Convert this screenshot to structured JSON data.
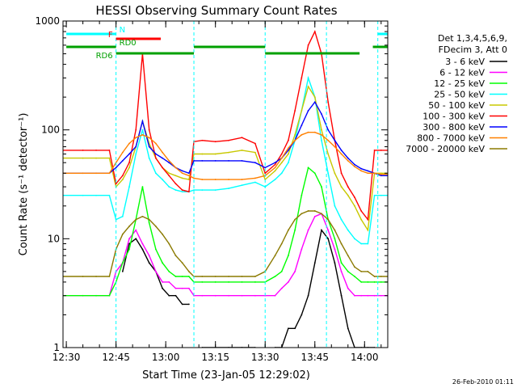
{
  "chart_data": {
    "type": "line",
    "title": "HESSI Observing Summary Count Rates",
    "xlabel": "Start Time (23-Jan-05 12:29:02)",
    "ylabel": "Count Rate (s⁻¹ detector⁻¹)",
    "y_scale": "log",
    "ylim": [
      1,
      1000
    ],
    "xlim": [
      0,
      98
    ],
    "x_unit": "minutes after 12:29:02",
    "x_tick_labels": [
      "12:30",
      "12:45",
      "13:00",
      "13:15",
      "13:30",
      "13:45",
      "14:00"
    ],
    "x_tick_values": [
      1,
      16,
      31,
      46,
      61,
      76,
      91
    ],
    "y_tick_labels": [
      "1",
      "10",
      "100",
      "1000"
    ],
    "y_tick_values": [
      1,
      10,
      100,
      1000
    ],
    "grid": false,
    "legend_position": "right",
    "legend_header": [
      "Det 1,3,4,5,6,9,",
      "FDecim 3, Att 0"
    ],
    "timestamp": "26-Feb-2010 01:11",
    "vertical_markers": [
      {
        "color": "#00ffff",
        "x": [
          16,
          39.5,
          61,
          79.5,
          95
        ]
      }
    ],
    "flags": [
      {
        "label": "N",
        "color": "#00ffff",
        "segments": [
          [
            1,
            16
          ],
          [
            95,
            98
          ]
        ]
      },
      {
        "label": "F",
        "color": "#ff0000",
        "segments": [
          [
            16,
            29.5
          ]
        ]
      },
      {
        "label": "RD0",
        "color": "#00a000",
        "segments": [
          [
            1,
            16
          ],
          [
            39.5,
            61
          ],
          [
            93.5,
            98
          ]
        ]
      },
      {
        "label": "RD6",
        "color": "#00a000",
        "segments": [
          [
            16,
            39.5
          ],
          [
            61,
            89.5
          ]
        ]
      }
    ],
    "series": [
      {
        "name": "3 - 6 keV",
        "color": "#000000",
        "x": [
          0,
          10,
          14,
          16,
          18,
          20,
          22,
          24,
          26,
          28,
          30,
          32,
          34,
          36,
          38,
          39.5,
          42,
          46,
          50,
          54,
          58,
          61,
          64,
          66,
          68,
          70,
          72,
          74,
          76,
          78,
          80,
          82,
          84,
          86,
          88,
          90,
          92,
          94,
          96,
          98
        ],
        "values": [
          null,
          null,
          null,
          null,
          5,
          9,
          10,
          8,
          6,
          5,
          3.5,
          3,
          3,
          2.5,
          2.5,
          null,
          1,
          1,
          1,
          1,
          1,
          null,
          1,
          1,
          1.5,
          1.5,
          2,
          3,
          6,
          12,
          10,
          6,
          3,
          1.5,
          1,
          1,
          1,
          1,
          null,
          null
        ]
      },
      {
        "name": "6 - 12 keV",
        "color": "#ff00ff",
        "x": [
          0,
          6,
          10,
          14,
          16,
          18,
          20,
          22,
          24,
          26,
          28,
          30,
          32,
          34,
          36,
          38,
          39.5,
          42,
          46,
          50,
          54,
          58,
          61,
          64,
          66,
          68,
          70,
          72,
          74,
          76,
          78,
          80,
          82,
          84,
          86,
          88,
          90,
          92,
          94,
          96,
          98
        ],
        "values": [
          3,
          3,
          3,
          3,
          5,
          6,
          10,
          12,
          9,
          7,
          5,
          4,
          4,
          3.5,
          3.5,
          3.5,
          3,
          3,
          3,
          3,
          3,
          3,
          3,
          3,
          3.5,
          4,
          5,
          8,
          12,
          16,
          17,
          12,
          8,
          5,
          3.5,
          3,
          3,
          3,
          3,
          3,
          3
        ]
      },
      {
        "name": "12 - 25 keV",
        "color": "#00ff00",
        "x": [
          0,
          6,
          10,
          14,
          16,
          18,
          20,
          22,
          24,
          26,
          28,
          30,
          32,
          34,
          36,
          38,
          39.5,
          42,
          46,
          50,
          54,
          58,
          61,
          64,
          66,
          68,
          70,
          72,
          74,
          76,
          78,
          80,
          82,
          84,
          86,
          88,
          90,
          92,
          94,
          96,
          98
        ],
        "values": [
          3,
          3,
          3,
          3,
          4,
          6,
          8,
          15,
          30,
          14,
          8,
          6,
          5,
          4.5,
          4.5,
          4.5,
          4,
          4,
          4,
          4,
          4,
          4,
          4,
          4.5,
          5,
          7,
          12,
          25,
          45,
          40,
          30,
          15,
          10,
          6,
          5,
          4.5,
          4,
          4,
          4,
          4,
          4
        ]
      },
      {
        "name": "25 - 50 keV",
        "color": "#00ffff",
        "x": [
          0,
          6,
          10,
          14,
          16,
          18,
          20,
          22,
          24,
          26,
          28,
          30,
          32,
          34,
          36,
          38,
          39.5,
          42,
          46,
          50,
          54,
          58,
          61,
          64,
          66,
          68,
          70,
          72,
          74,
          76,
          78,
          80,
          82,
          84,
          86,
          88,
          90,
          92,
          94,
          96,
          98
        ],
        "values": [
          25,
          25,
          25,
          25,
          15,
          16,
          30,
          60,
          100,
          55,
          40,
          35,
          30,
          28,
          27,
          27,
          28,
          28,
          28,
          29,
          31,
          33,
          30,
          35,
          40,
          50,
          80,
          150,
          300,
          200,
          80,
          40,
          20,
          15,
          12,
          10,
          9,
          9,
          25,
          25,
          25
        ]
      },
      {
        "name": "50 - 100 keV",
        "color": "#c8c800",
        "x": [
          0,
          6,
          10,
          14,
          16,
          18,
          20,
          22,
          24,
          26,
          28,
          30,
          32,
          34,
          36,
          38,
          39.5,
          42,
          46,
          50,
          54,
          58,
          61,
          64,
          66,
          68,
          70,
          72,
          74,
          76,
          78,
          80,
          82,
          84,
          86,
          88,
          90,
          92,
          94,
          96,
          98
        ],
        "values": [
          55,
          55,
          55,
          55,
          30,
          35,
          45,
          70,
          120,
          75,
          55,
          45,
          40,
          38,
          36,
          35,
          60,
          60,
          60,
          62,
          65,
          62,
          35,
          42,
          50,
          60,
          90,
          150,
          250,
          200,
          100,
          60,
          40,
          30,
          25,
          20,
          15,
          12,
          40,
          40,
          40
        ]
      },
      {
        "name": "100 - 300 keV",
        "color": "#ff0000",
        "x": [
          0,
          6,
          10,
          14,
          16,
          18,
          20,
          22,
          24,
          26,
          28,
          30,
          32,
          34,
          36,
          38,
          39.5,
          42,
          46,
          50,
          54,
          58,
          61,
          64,
          66,
          68,
          70,
          72,
          74,
          76,
          78,
          80,
          82,
          84,
          86,
          88,
          90,
          92,
          94,
          96,
          98
        ],
        "values": [
          65,
          65,
          65,
          65,
          32,
          38,
          50,
          100,
          500,
          100,
          55,
          45,
          38,
          32,
          28,
          27,
          78,
          80,
          78,
          80,
          85,
          75,
          40,
          48,
          60,
          80,
          150,
          300,
          600,
          800,
          500,
          180,
          80,
          40,
          30,
          24,
          18,
          15,
          65,
          65,
          65
        ]
      },
      {
        "name": "300 - 800 keV",
        "color": "#0000ff",
        "x": [
          0,
          6,
          10,
          14,
          16,
          18,
          20,
          22,
          24,
          26,
          28,
          30,
          32,
          34,
          36,
          38,
          39.5,
          42,
          46,
          50,
          54,
          58,
          61,
          64,
          66,
          68,
          70,
          72,
          74,
          76,
          78,
          80,
          82,
          84,
          86,
          88,
          90,
          92,
          94,
          96,
          98
        ],
        "values": [
          40,
          40,
          40,
          40,
          45,
          52,
          60,
          70,
          120,
          70,
          60,
          55,
          50,
          45,
          42,
          40,
          52,
          52,
          52,
          52,
          52,
          50,
          45,
          50,
          55,
          65,
          80,
          110,
          150,
          180,
          140,
          100,
          80,
          65,
          55,
          48,
          44,
          42,
          40,
          38,
          38
        ]
      },
      {
        "name": "800 - 7000 keV",
        "color": "#ff8000",
        "x": [
          0,
          6,
          10,
          14,
          16,
          18,
          20,
          22,
          24,
          26,
          28,
          30,
          32,
          34,
          36,
          38,
          39.5,
          42,
          46,
          50,
          54,
          58,
          61,
          64,
          66,
          68,
          70,
          72,
          74,
          76,
          78,
          80,
          82,
          84,
          86,
          88,
          90,
          92,
          94,
          96,
          98
        ],
        "values": [
          40,
          40,
          40,
          40,
          50,
          62,
          75,
          85,
          90,
          85,
          75,
          62,
          52,
          45,
          40,
          38,
          36,
          35,
          35,
          35,
          35,
          36,
          38,
          45,
          55,
          68,
          80,
          90,
          95,
          95,
          90,
          80,
          70,
          60,
          52,
          46,
          42,
          40,
          40,
          39,
          39
        ]
      },
      {
        "name": "7000 - 20000 keV",
        "color": "#8b7a00",
        "x": [
          0,
          6,
          10,
          14,
          16,
          18,
          20,
          22,
          24,
          26,
          28,
          30,
          32,
          34,
          36,
          38,
          39.5,
          42,
          46,
          50,
          54,
          58,
          61,
          64,
          66,
          68,
          70,
          72,
          74,
          76,
          78,
          80,
          82,
          84,
          86,
          88,
          90,
          92,
          94,
          96,
          98
        ],
        "values": [
          4.5,
          4.5,
          4.5,
          4.5,
          8,
          11,
          13,
          15,
          16,
          15,
          13,
          11,
          9,
          7,
          6,
          5,
          4.5,
          4.5,
          4.5,
          4.5,
          4.5,
          4.5,
          5,
          7,
          9,
          12,
          15,
          17,
          18,
          18,
          17,
          15,
          12,
          9,
          7,
          5.5,
          5,
          5,
          4.5,
          4.5,
          4.5
        ]
      }
    ]
  }
}
